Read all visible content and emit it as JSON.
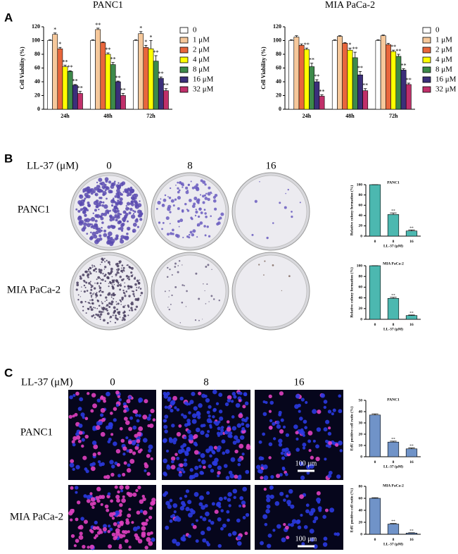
{
  "panels": {
    "a": {
      "letter": "A"
    },
    "b": {
      "letter": "B",
      "treatment": "LL-37 (μM)",
      "doses": [
        "0",
        "8",
        "16"
      ],
      "rows": [
        "PANC1",
        "MIA PaCa-2"
      ]
    },
    "c": {
      "letter": "C",
      "treatment": "LL-37 (μM)",
      "doses": [
        "0",
        "8",
        "16"
      ],
      "rows": [
        "PANC1",
        "MIA PaCa-2"
      ],
      "scale_bars": [
        "100 μm",
        "100 μm"
      ]
    }
  },
  "chart_data": [
    {
      "type": "bar",
      "title": "PANC1",
      "y_label": "Cell Viability (%)",
      "categories": [
        "24h",
        "48h",
        "72h"
      ],
      "ylim": [
        0,
        120
      ],
      "yticks": [
        0,
        20,
        40,
        60,
        80,
        100,
        120
      ],
      "series": [
        {
          "name": "0",
          "color": "#ffffff",
          "values": [
            100,
            100,
            100
          ],
          "errors": [
            1,
            1,
            1
          ],
          "significance": [
            null,
            null,
            null
          ]
        },
        {
          "name": "1 μM",
          "color": "#f6c89b",
          "values": [
            109,
            116,
            110
          ],
          "errors": [
            2,
            2,
            3
          ],
          "significance": [
            "*",
            "**",
            "*"
          ]
        },
        {
          "name": "2 μM",
          "color": "#e8663c",
          "values": [
            88,
            97,
            90
          ],
          "errors": [
            2,
            1,
            3
          ],
          "significance": [
            "*",
            null,
            "*"
          ]
        },
        {
          "name": "4 μM",
          "color": "#ffff00",
          "values": [
            62,
            80,
            88
          ],
          "errors": [
            2,
            2,
            12
          ],
          "significance": [
            "**",
            "**",
            "*"
          ]
        },
        {
          "name": "8 μM",
          "color": "#3d8a4a",
          "values": [
            55,
            65,
            70
          ],
          "errors": [
            1,
            3,
            8
          ],
          "significance": [
            "**",
            "**",
            "**"
          ]
        },
        {
          "name": "16 μM",
          "color": "#3b2f7a",
          "values": [
            35,
            40,
            45
          ],
          "errors": [
            1,
            1,
            2
          ],
          "significance": [
            "**",
            "**",
            "**"
          ]
        },
        {
          "name": "32 μM",
          "color": "#c0306a",
          "values": [
            23,
            20,
            27
          ],
          "errors": [
            3,
            3,
            3
          ],
          "significance": [
            "**",
            "**",
            "**"
          ]
        }
      ]
    },
    {
      "type": "bar",
      "title": "MIA PaCa-2",
      "y_label": "Cell Viability (%)",
      "categories": [
        "24h",
        "48h",
        "72h"
      ],
      "ylim": [
        0,
        120
      ],
      "yticks": [
        0,
        20,
        40,
        60,
        80,
        100,
        120
      ],
      "series": [
        {
          "name": "0",
          "color": "#ffffff",
          "values": [
            100,
            100,
            100
          ],
          "errors": [
            1,
            1,
            1
          ],
          "significance": [
            null,
            null,
            null
          ]
        },
        {
          "name": "1 μM",
          "color": "#f6c89b",
          "values": [
            105,
            106,
            107
          ],
          "errors": [
            2,
            1,
            1
          ],
          "significance": [
            null,
            null,
            null
          ]
        },
        {
          "name": "2 μM",
          "color": "#e8663c",
          "values": [
            93,
            96,
            94
          ],
          "errors": [
            2,
            1,
            2
          ],
          "significance": [
            null,
            null,
            null
          ]
        },
        {
          "name": "4 μM",
          "color": "#ffff00",
          "values": [
            87,
            86,
            84
          ],
          "errors": [
            2,
            3,
            2
          ],
          "significance": [
            "**",
            "*",
            "**"
          ]
        },
        {
          "name": "8 μM",
          "color": "#3d8a4a",
          "values": [
            62,
            75,
            77
          ],
          "errors": [
            5,
            8,
            3
          ],
          "significance": [
            "**",
            "**",
            "**"
          ]
        },
        {
          "name": "16 μM",
          "color": "#3b2f7a",
          "values": [
            40,
            50,
            57
          ],
          "errors": [
            3,
            5,
            2
          ],
          "significance": [
            "**",
            "**",
            "**"
          ]
        },
        {
          "name": "32 μM",
          "color": "#c0306a",
          "values": [
            19,
            27,
            36
          ],
          "errors": [
            2,
            3,
            2
          ],
          "significance": [
            "**",
            "**",
            "**"
          ]
        }
      ]
    },
    {
      "type": "bar",
      "title": "PANC1",
      "y_label": "Relative colony formation (%)",
      "x_label": "LL-37 (μM)",
      "categories": [
        "0",
        "8",
        "16"
      ],
      "values": [
        100,
        42,
        10
      ],
      "errors": [
        0,
        3,
        2
      ],
      "significance": [
        null,
        "**",
        "**"
      ],
      "color": "#4cb8b0",
      "ylim": [
        0,
        100
      ],
      "yticks": [
        0,
        20,
        40,
        60,
        80,
        100
      ]
    },
    {
      "type": "bar",
      "title": "MIA PaCa-2",
      "y_label": "Relative colony formation (%)",
      "x_label": "LL-37 (μM)",
      "categories": [
        "0",
        "8",
        "16"
      ],
      "values": [
        100,
        39,
        7
      ],
      "errors": [
        0,
        2,
        1
      ],
      "significance": [
        null,
        "**",
        "**"
      ],
      "color": "#4cb8b0",
      "ylim": [
        0,
        100
      ],
      "yticks": [
        0,
        20,
        40,
        60,
        80,
        100
      ]
    },
    {
      "type": "bar",
      "title": "PANC1",
      "y_label": "EdU positive cell ratio (%)",
      "x_label": "LL-37 (μM)",
      "categories": [
        "0",
        "8",
        "16"
      ],
      "values": [
        37,
        13,
        7
      ],
      "errors": [
        1,
        0.8,
        0.8
      ],
      "significance": [
        null,
        "**",
        "**"
      ],
      "color": "#7093c8",
      "ylim": [
        0,
        50
      ],
      "yticks": [
        0,
        10,
        20,
        30,
        40,
        50
      ]
    },
    {
      "type": "bar",
      "title": "MIA PaCa-2",
      "y_label": "EdU positive cell ratio (%)",
      "x_label": "LL-37 (μM)",
      "categories": [
        "0",
        "8",
        "16"
      ],
      "values": [
        60,
        17,
        2
      ],
      "errors": [
        1,
        1,
        0.5
      ],
      "significance": [
        null,
        "**",
        "**"
      ],
      "color": "#7093c8",
      "ylim": [
        0,
        80
      ],
      "yticks": [
        0,
        20,
        40,
        60,
        80
      ]
    }
  ]
}
